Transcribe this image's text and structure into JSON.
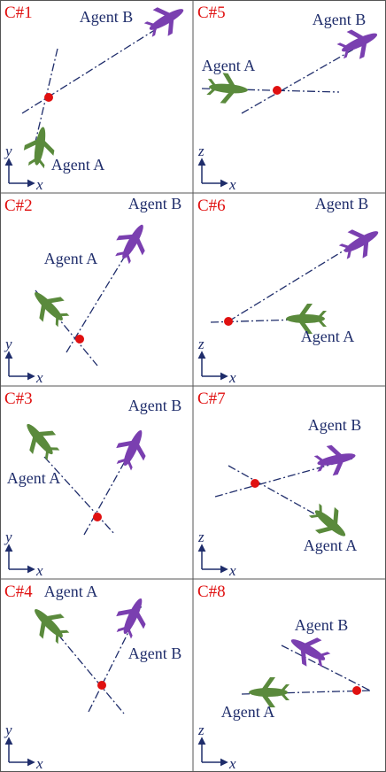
{
  "panels": [
    {
      "case": "C#1",
      "agent_a": "Agent A",
      "agent_b": "Agent B",
      "axis_h": "x",
      "axis_v": "y"
    },
    {
      "case": "C#5",
      "agent_a": "Agent A",
      "agent_b": "Agent B",
      "axis_h": "x",
      "axis_v": "z"
    },
    {
      "case": "C#2",
      "agent_a": "Agent A",
      "agent_b": "Agent B",
      "axis_h": "x",
      "axis_v": "y"
    },
    {
      "case": "C#6",
      "agent_a": "Agent A",
      "agent_b": "Agent B",
      "axis_h": "x",
      "axis_v": "z"
    },
    {
      "case": "C#3",
      "agent_a": "Agent A",
      "agent_b": "Agent B",
      "axis_h": "x",
      "axis_v": "y"
    },
    {
      "case": "C#7",
      "agent_a": "Agent A",
      "agent_b": "Agent B",
      "axis_h": "x",
      "axis_v": "z"
    },
    {
      "case": "C#4",
      "agent_a": "Agent A",
      "agent_b": "Agent B",
      "axis_h": "x",
      "axis_v": "y"
    },
    {
      "case": "C#8",
      "agent_a": "Agent A",
      "agent_b": "Agent B",
      "axis_h": "x",
      "axis_v": "z"
    }
  ]
}
